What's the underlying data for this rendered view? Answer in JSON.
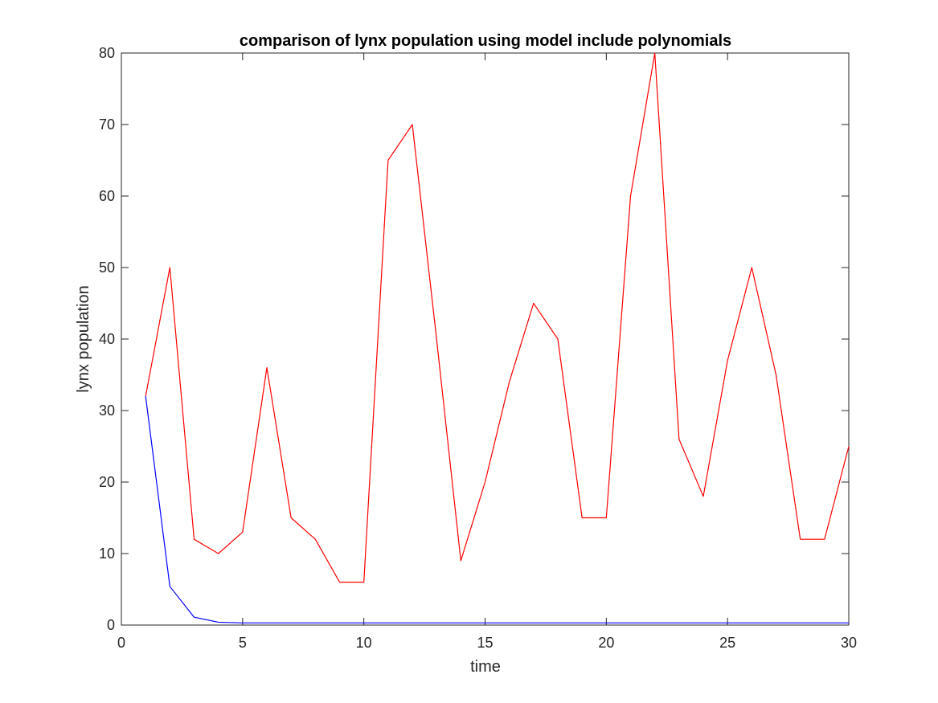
{
  "chart_data": {
    "type": "line",
    "title": "comparison of lynx population using model include polynomials",
    "xlabel": "time",
    "ylabel": "lynx population",
    "xlim": [
      0,
      30
    ],
    "ylim": [
      0,
      80
    ],
    "xticks": [
      0,
      5,
      10,
      15,
      20,
      25,
      30
    ],
    "yticks": [
      0,
      10,
      20,
      30,
      40,
      50,
      60,
      70,
      80
    ],
    "xtick_labels": [
      "0",
      "5",
      "10",
      "15",
      "20",
      "25",
      "30"
    ],
    "ytick_labels": [
      "0",
      "10",
      "20",
      "30",
      "40",
      "50",
      "60",
      "70",
      "80"
    ],
    "grid": false,
    "box": true,
    "series": [
      {
        "color": "#ff0000",
        "x": [
          1,
          2,
          3,
          4,
          5,
          6,
          7,
          8,
          9,
          10,
          11,
          12,
          13,
          14,
          15,
          16,
          17,
          18,
          19,
          20,
          21,
          22,
          23,
          24,
          25,
          26,
          27,
          28,
          29,
          30
        ],
        "y": [
          32,
          50,
          12,
          10,
          13,
          36,
          15,
          12,
          6,
          6,
          65,
          70,
          40,
          9,
          20,
          34,
          45,
          40,
          15,
          15,
          60,
          80,
          26,
          18,
          37,
          50,
          35,
          12,
          12,
          25
        ]
      },
      {
        "color": "#0000ff",
        "x": [
          1,
          2,
          3,
          4,
          5,
          6,
          7,
          8,
          9,
          10,
          11,
          12,
          13,
          14,
          15,
          16,
          17,
          18,
          19,
          20,
          21,
          22,
          23,
          24,
          25,
          26,
          27,
          28,
          29,
          30
        ],
        "y": [
          32,
          5.4,
          1.1,
          0.4,
          0.3,
          0.3,
          0.3,
          0.3,
          0.3,
          0.3,
          0.3,
          0.3,
          0.3,
          0.3,
          0.3,
          0.3,
          0.3,
          0.3,
          0.3,
          0.3,
          0.3,
          0.3,
          0.3,
          0.3,
          0.3,
          0.3,
          0.3,
          0.3,
          0.3,
          0.3
        ]
      }
    ]
  }
}
